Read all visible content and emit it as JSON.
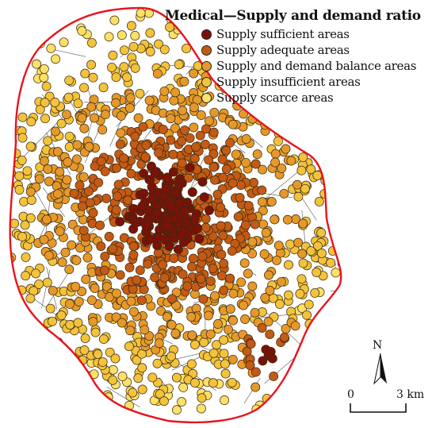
{
  "legend": {
    "title": "Medical—Supply and demand ratio",
    "items": [
      {
        "label": "Supply sufficient areas",
        "color": "#7a1208"
      },
      {
        "label": "Supply adequate areas",
        "color": "#c45a14"
      },
      {
        "label": "Supply and demand balance areas",
        "color": "#e6992a"
      },
      {
        "label": "Supply insufficient areas",
        "color": "#f3c33c"
      },
      {
        "label": "Supply scarce areas",
        "color": "#fde068"
      }
    ]
  },
  "boundary_color": "#e8141c",
  "north_arrow": {
    "label": "N"
  },
  "scale_bar": {
    "start_label": "0",
    "end_label": "3 km"
  }
}
